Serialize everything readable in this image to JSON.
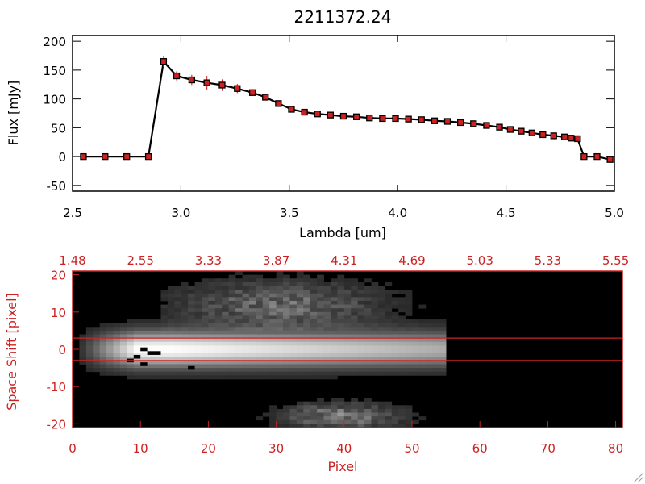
{
  "chart_data": [
    {
      "type": "line",
      "title": "2211372.24",
      "xlabel": "Lambda [um]",
      "ylabel": "Flux [mJy]",
      "xlim": [
        2.5,
        5.0
      ],
      "ylim": [
        -60,
        210
      ],
      "xticks": [
        "2.5",
        "3.0",
        "3.5",
        "4.0",
        "4.5",
        "5.0"
      ],
      "yticks": [
        "-50",
        "0",
        "50",
        "100",
        "150",
        "200"
      ],
      "grid": false,
      "colors": {
        "line": "#000000",
        "marker": "#cc2222",
        "errorbar": "#cc2222"
      },
      "series": [
        {
          "x": [
            2.55,
            2.65,
            2.75,
            2.85,
            2.92,
            2.98,
            3.05,
            3.12,
            3.19,
            3.26,
            3.33,
            3.39,
            3.45,
            3.51,
            3.57,
            3.63,
            3.69,
            3.75,
            3.81,
            3.87,
            3.93,
            3.99,
            4.05,
            4.11,
            4.17,
            4.23,
            4.29,
            4.35,
            4.41,
            4.47,
            4.52,
            4.57,
            4.62,
            4.67,
            4.72,
            4.77,
            4.8,
            4.83,
            4.86,
            4.92,
            4.98
          ],
          "y": [
            0,
            0,
            0,
            0,
            165,
            140,
            133,
            128,
            124,
            118,
            111,
            103,
            92,
            82,
            77,
            74,
            72,
            70,
            69,
            67,
            66,
            66,
            65,
            64,
            62,
            61,
            59,
            57,
            54,
            51,
            47,
            44,
            41,
            38,
            36,
            34,
            32,
            31,
            0,
            0,
            -5
          ],
          "err": [
            2,
            2,
            2,
            2,
            10,
            8,
            9,
            12,
            10,
            8,
            6,
            4,
            3,
            2,
            2,
            2,
            2,
            2,
            2,
            2,
            2,
            2,
            2,
            2,
            2,
            2,
            2,
            2,
            2,
            2,
            2,
            2,
            2,
            2,
            2,
            2,
            2,
            2,
            3,
            3,
            3
          ]
        }
      ]
    },
    {
      "type": "heatmap",
      "xlabel": "Pixel",
      "ylabel": "Space Shift [pixel]",
      "xlim": [
        0,
        81
      ],
      "ylim": [
        -21,
        21
      ],
      "xticks": [
        "0",
        "10",
        "20",
        "30",
        "40",
        "50",
        "60",
        "70",
        "80"
      ],
      "yticks": [
        "-20",
        "-10",
        "0",
        "10",
        "20"
      ],
      "top_axis_ticks": [
        "1.48",
        "2.55",
        "3.33",
        "3.87",
        "4.31",
        "4.69",
        "5.03",
        "5.33",
        "5.55"
      ],
      "extraction_window": [
        -3,
        3
      ],
      "signal_extent": {
        "x_start": 1,
        "x_end": 55,
        "profile_width": 3.2
      },
      "colors": {
        "axis": "#cc2222",
        "background": "#000000",
        "window_lines": "#cc2222"
      }
    }
  ]
}
